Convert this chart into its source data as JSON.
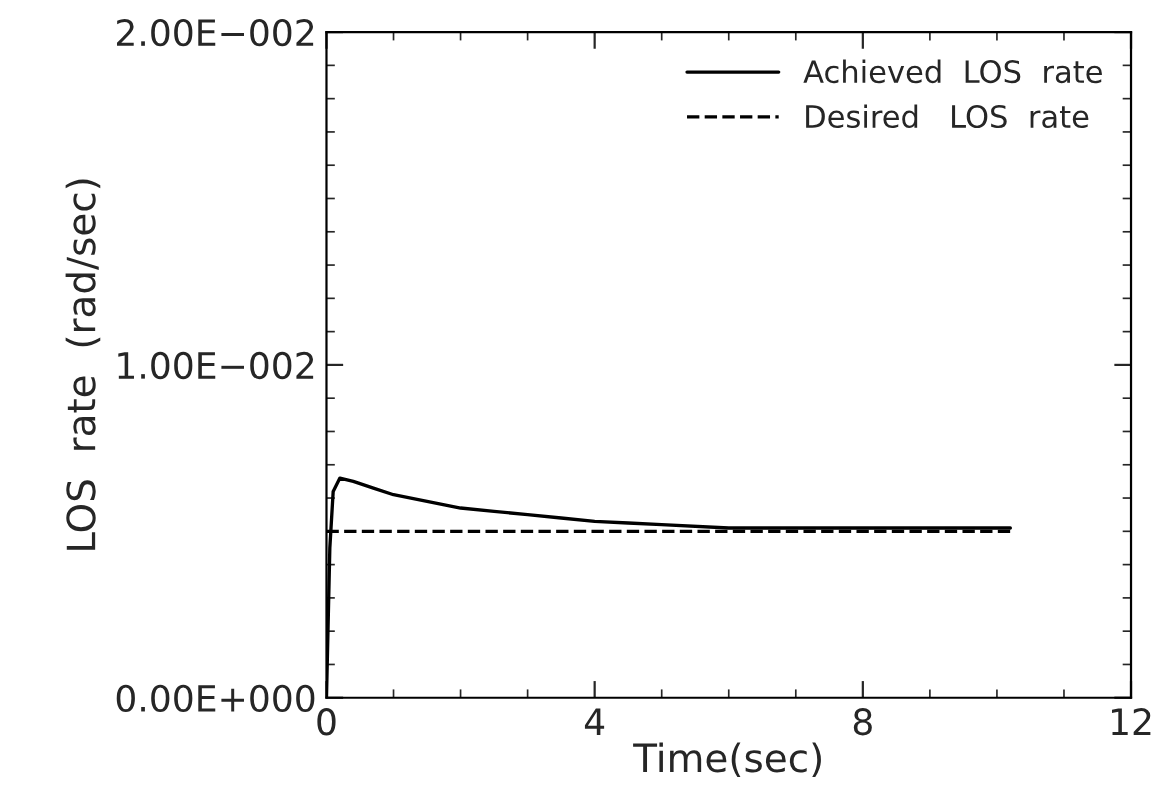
{
  "chart_data": {
    "type": "line",
    "xlabel": "Time(sec)",
    "ylabel": "LOS  rate  (rad/sec)",
    "xlim": [
      0,
      12
    ],
    "xticks": [
      0,
      4,
      8,
      12
    ],
    "ylim": [
      0,
      0.02
    ],
    "yticks": [
      {
        "value": 0,
        "label": "0.00E+000"
      },
      {
        "value": 0.01,
        "label": "1.00E−002"
      },
      {
        "value": 0.02,
        "label": "2.00E−002"
      }
    ],
    "legend": "top right",
    "grid": false,
    "marker": "none",
    "series": [
      {
        "name": "Achieved  LOS  rate",
        "color": "#000000",
        "line_style": "solid",
        "x": [
          0,
          0.05,
          0.1,
          0.2,
          0.4,
          0.7,
          1.0,
          1.5,
          2.0,
          2.5,
          3.0,
          3.5,
          4.0,
          4.5,
          5.0,
          6.0,
          7.0,
          8.0,
          9.0,
          10.2
        ],
        "values": [
          0,
          0.0045,
          0.0062,
          0.0066,
          0.0065,
          0.0063,
          0.0061,
          0.0059,
          0.0057,
          0.0056,
          0.0055,
          0.0054,
          0.0053,
          0.00525,
          0.0052,
          0.0051,
          0.0051,
          0.0051,
          0.0051,
          0.0051
        ]
      },
      {
        "name": "Desired   LOS  rate",
        "color": "#000000",
        "line_style": "dashed",
        "x": [
          0,
          10.2
        ],
        "values": [
          0.005,
          0.005
        ]
      }
    ]
  }
}
